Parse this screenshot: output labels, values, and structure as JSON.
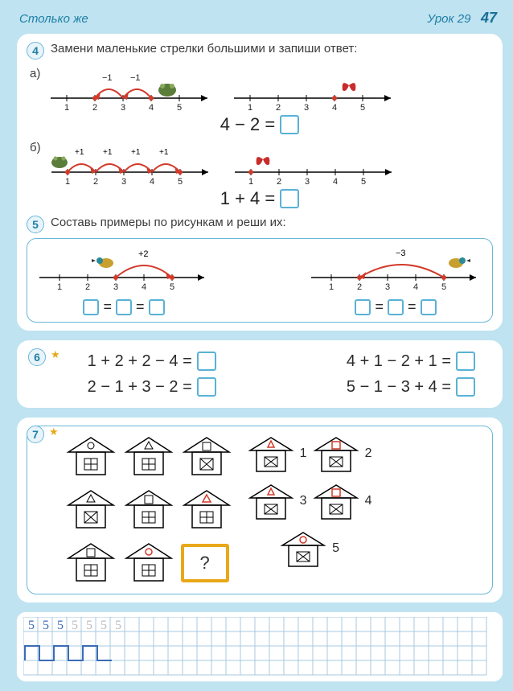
{
  "header": {
    "left": "Столько же",
    "right_label": "Урок 29",
    "page_no": "47"
  },
  "task4": {
    "num": "4",
    "text": "Замени маленькие стрелки большими и запиши ответ:",
    "a_label": "а)",
    "b_label": "б)",
    "a_arc_labels": [
      "−1",
      "−1"
    ],
    "b_arc_labels": [
      "+1",
      "+1",
      "+1",
      "+1"
    ],
    "ticks": [
      "1",
      "2",
      "3",
      "4",
      "5"
    ],
    "eq_a": "4 − 2 =",
    "eq_b": "1 + 4 =",
    "colors": {
      "arc_red": "#d23a2a",
      "axis": "#000000",
      "tick_label": "#222222",
      "frog": "#5a7d3a",
      "butterfly": "#c92c2c"
    }
  },
  "task5": {
    "num": "5",
    "text": "Составь примеры по рисункам и реши их:",
    "left_arc": "+2",
    "right_arc": "−3",
    "ticks": [
      "1",
      "2",
      "3",
      "4",
      "5"
    ],
    "bird": "#2a8a9a"
  },
  "task6": {
    "num": "6",
    "col1": [
      "1 + 2 + 2 − 4 =",
      "2 − 1 + 3 − 2 ="
    ],
    "col2": [
      "4 + 1 − 2 + 1 =",
      "5 − 1 − 3 + 4 ="
    ]
  },
  "task7": {
    "num": "7",
    "qmark": "?",
    "right_nums": [
      "1",
      "2",
      "3",
      "4",
      "5"
    ],
    "shapes": {
      "triangle_red": "#d23a2a",
      "square_red": "#d23a2a",
      "circle_red": "#d23a2a"
    }
  },
  "handwriting": {
    "cells": [
      "5",
      "5",
      "5",
      "5",
      "5",
      "5",
      "5"
    ],
    "grid_color": "#a7c8e0",
    "ink_blue": "#3b6cb5",
    "ink_gray": "#bcbcbc"
  }
}
